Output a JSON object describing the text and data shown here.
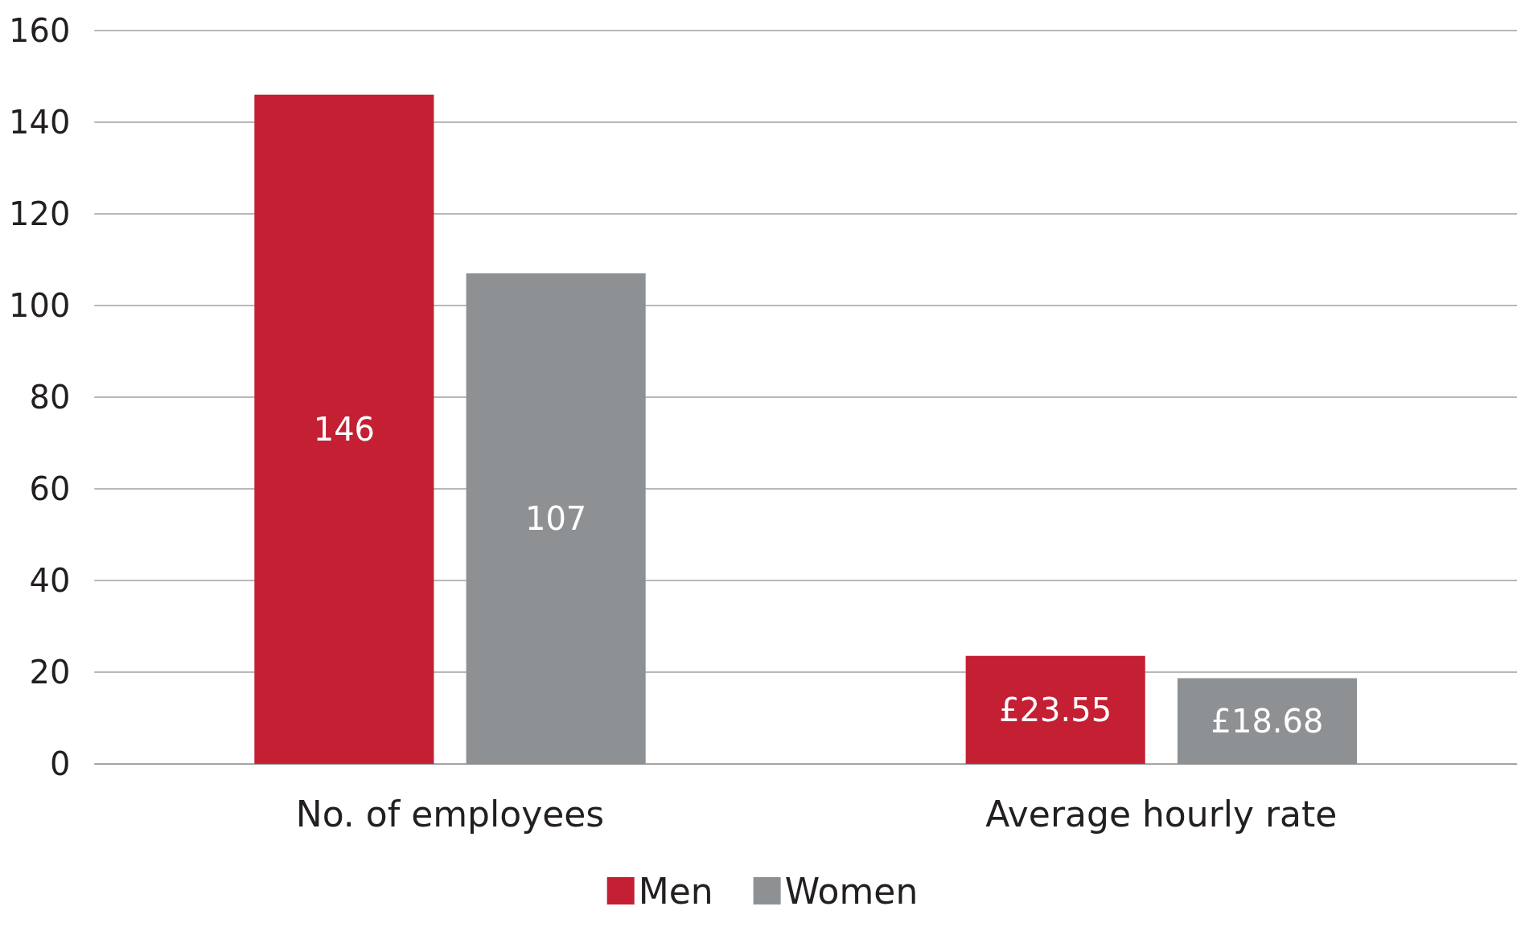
{
  "chart_data": {
    "type": "bar",
    "categories": [
      "No. of employees",
      "Average hourly rate"
    ],
    "series": [
      {
        "name": "Men",
        "color": "#c41f33",
        "values": [
          146,
          23.55
        ],
        "value_labels": [
          "146",
          "£23.55"
        ]
      },
      {
        "name": "Women",
        "color": "#8e9194",
        "values": [
          107,
          18.68
        ],
        "value_labels": [
          "107",
          "£18.68"
        ]
      }
    ],
    "ylim": [
      0,
      160
    ],
    "yticks": [
      0,
      20,
      40,
      60,
      80,
      100,
      120,
      140,
      160
    ],
    "grid": "y",
    "legend": "bottom"
  }
}
